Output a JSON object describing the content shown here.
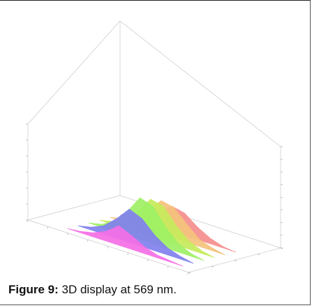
{
  "chart_data": {
    "type": "area",
    "title": "",
    "xlabel": "",
    "ylabel": "",
    "zlabel": "",
    "series": [
      {
        "color": "#f46fe6",
        "values": [
          0,
          1,
          3,
          7,
          14,
          10,
          5,
          2,
          1,
          0
        ]
      },
      {
        "color": "#8080ee",
        "values": [
          0,
          2,
          6,
          14,
          24,
          20,
          11,
          5,
          2,
          0
        ]
      },
      {
        "color": "#9ef065",
        "values": [
          0,
          2,
          7,
          17,
          30,
          27,
          15,
          6,
          2,
          0
        ]
      },
      {
        "color": "#c6ec5c",
        "values": [
          0,
          2,
          6,
          15,
          27,
          25,
          14,
          6,
          2,
          0
        ]
      },
      {
        "color": "#f4c27c",
        "values": [
          0,
          2,
          6,
          14,
          24,
          22,
          13,
          5,
          2,
          0
        ]
      },
      {
        "color": "#f58e8e",
        "values": [
          0,
          1,
          4,
          10,
          18,
          16,
          9,
          4,
          1,
          0
        ]
      }
    ]
  },
  "caption": {
    "label": "Figure 9:",
    "text": " 3D display at 569 nm."
  }
}
